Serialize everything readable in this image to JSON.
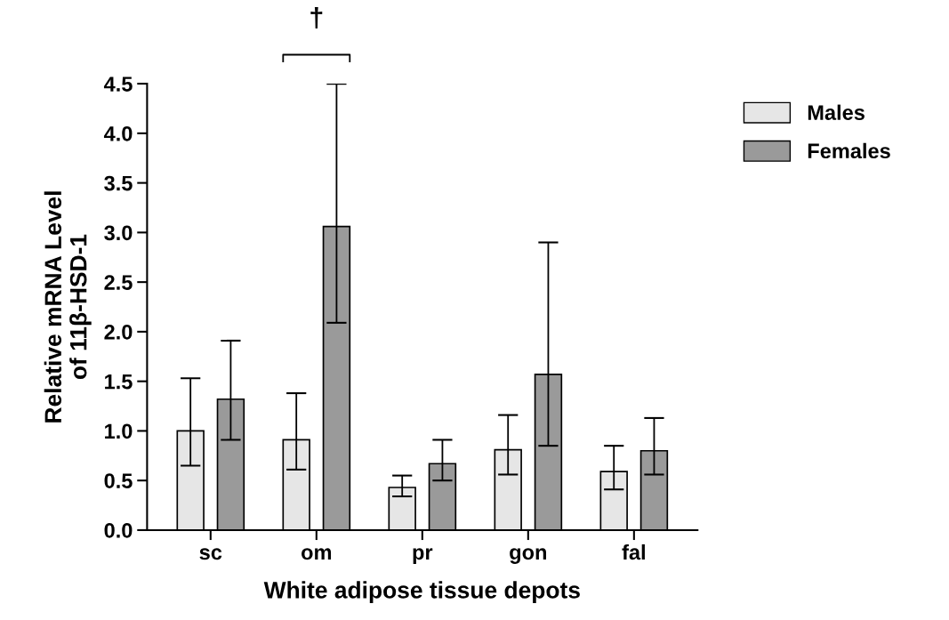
{
  "chart_data": {
    "type": "bar",
    "xlabel": "White adipose tissue depots",
    "ylabel": "Relative mRNA Level\nof 11β-HSD-1",
    "categories": [
      "sc",
      "om",
      "pr",
      "gon",
      "fal"
    ],
    "series": [
      {
        "name": "Males",
        "color": "#e6e6e6",
        "values": [
          1.0,
          0.91,
          0.43,
          0.81,
          0.59
        ],
        "errors": [
          [
            0.65,
            1.53
          ],
          [
            0.61,
            1.38
          ],
          [
            0.34,
            0.55
          ],
          [
            0.56,
            1.16
          ],
          [
            0.41,
            0.85
          ]
        ]
      },
      {
        "name": "Females",
        "color": "#9a9a9a",
        "values": [
          1.32,
          3.06,
          0.67,
          1.57,
          0.8
        ],
        "errors": [
          [
            0.91,
            1.91
          ],
          [
            2.09,
            4.5
          ],
          [
            0.5,
            0.91
          ],
          [
            0.85,
            2.9
          ],
          [
            0.56,
            1.13
          ]
        ]
      }
    ],
    "ylim": [
      0,
      4.5
    ],
    "yticks": [
      {
        "value": 0,
        "label": "0.0"
      },
      0.5,
      {
        "value": 1,
        "label": "1.0"
      },
      1.5,
      {
        "value": 2,
        "label": "2.0"
      },
      2.5,
      {
        "value": 3,
        "label": "3.0"
      },
      3.5,
      {
        "value": 4,
        "label": "4.0"
      },
      4.5
    ],
    "annotations": [
      "†"
    ],
    "legend": "top right",
    "grid": false
  }
}
